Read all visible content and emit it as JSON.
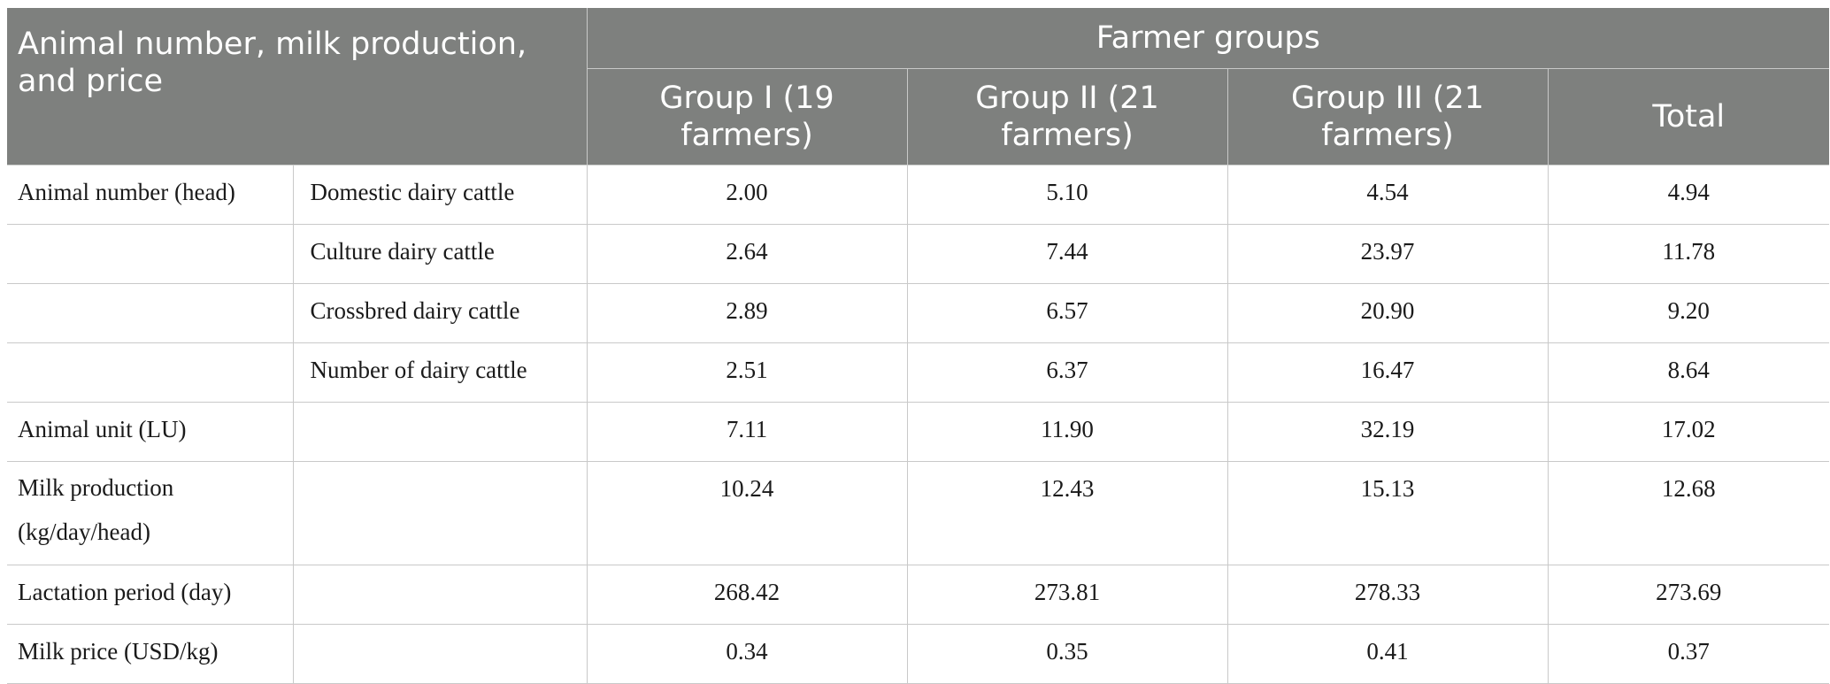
{
  "header": {
    "corner": "Animal number, milk production, and price",
    "group_title": "Farmer groups",
    "columns": [
      "Group I (19 farmers)",
      "Group II (21 farmers)",
      "Group III (21 farmers)",
      "Total"
    ]
  },
  "rows": [
    {
      "label": "Animal number (head)",
      "sublabel": "Domestic dairy cattle",
      "values": [
        "2.00",
        "5.10",
        "4.54",
        "4.94"
      ]
    },
    {
      "label": "",
      "sublabel": "Culture dairy cattle",
      "values": [
        "2.64",
        "7.44",
        "23.97",
        "11.78"
      ]
    },
    {
      "label": "",
      "sublabel": "Crossbred dairy cattle",
      "values": [
        "2.89",
        "6.57",
        "20.90",
        "9.20"
      ]
    },
    {
      "label": "",
      "sublabel": "Number of dairy cattle",
      "values": [
        "2.51",
        "6.37",
        "16.47",
        "8.64"
      ]
    },
    {
      "label": "Animal unit (LU)",
      "sublabel": "",
      "values": [
        "7.11",
        "11.90",
        "32.19",
        "17.02"
      ]
    },
    {
      "label": "Milk production (kg/day/head)",
      "sublabel": "",
      "values": [
        "10.24",
        "12.43",
        "15.13",
        "12.68"
      ]
    },
    {
      "label": "Lactation period (day)",
      "sublabel": "",
      "values": [
        "268.42",
        "273.81",
        "278.33",
        "273.69"
      ]
    },
    {
      "label": "Milk price (USD/kg)",
      "sublabel": "",
      "values": [
        "0.34",
        "0.35",
        "0.41",
        "0.37"
      ]
    }
  ]
}
